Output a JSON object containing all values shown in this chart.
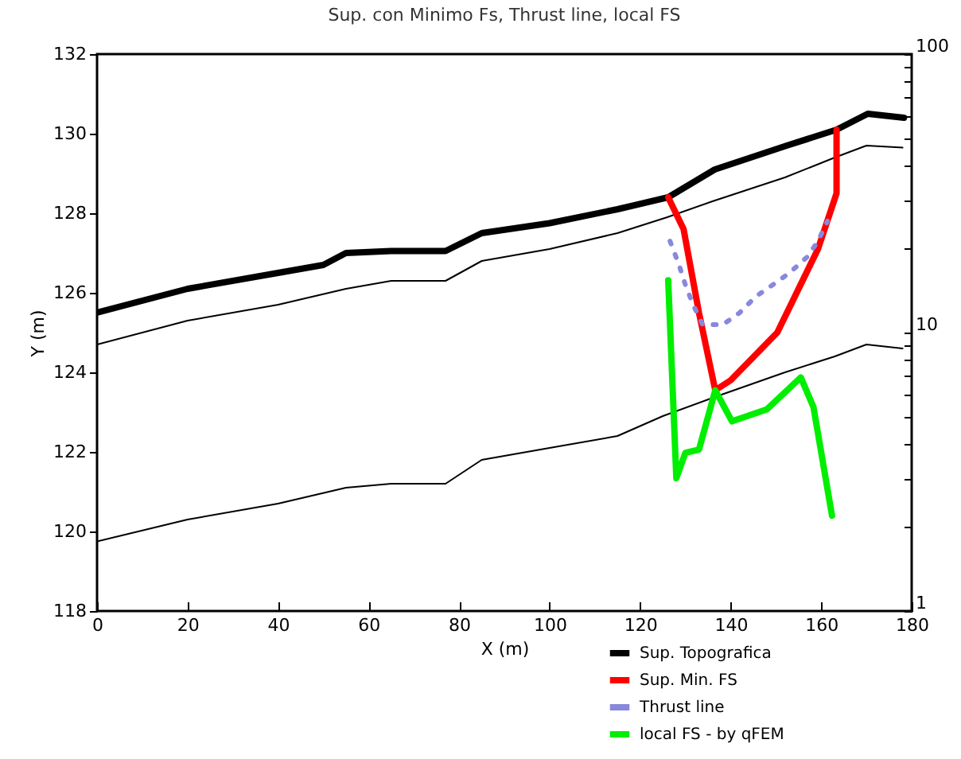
{
  "chart_data": {
    "type": "line",
    "title": "Sup. con Minimo Fs, Thrust line, local FS",
    "xlabel": "X (m)",
    "ylabel": "Y (m)",
    "xlim": [
      0,
      180
    ],
    "xticks": [
      0,
      20,
      40,
      60,
      80,
      100,
      120,
      140,
      160,
      180
    ],
    "ylim": [
      118,
      132
    ],
    "yticks": [
      118,
      120,
      122,
      124,
      126,
      128,
      130,
      132
    ],
    "y2lim": [
      1,
      100
    ],
    "y2ticks": [
      1,
      {
        "value": 2,
        "label": null
      },
      {
        "value": 3,
        "label": null
      },
      {
        "value": 4,
        "label": null
      },
      {
        "value": 5,
        "label": null
      },
      {
        "value": 6,
        "label": null
      },
      {
        "value": 7,
        "label": null
      },
      {
        "value": 8,
        "label": null
      },
      {
        "value": 9,
        "label": null
      },
      10,
      {
        "value": 20,
        "label": null
      },
      {
        "value": 30,
        "label": null
      },
      {
        "value": 40,
        "label": null
      },
      {
        "value": 50,
        "label": null
      },
      {
        "value": 60,
        "label": null
      },
      {
        "value": 70,
        "label": null
      },
      {
        "value": 80,
        "label": null
      },
      {
        "value": 90,
        "label": null
      },
      100
    ],
    "log": "y2",
    "grid": false,
    "legend": "bottom right",
    "marker": "none",
    "series": [
      {
        "name": "Sup. Topografica",
        "color": "#000000",
        "line_style": "solid",
        "x": [
          0,
          20,
          40,
          50,
          55,
          65,
          77,
          85,
          100,
          115,
          126.2,
          136.5,
          152.4,
          163.4,
          170.3,
          178.3
        ],
        "values": [
          125.5,
          126.1,
          126.5,
          126.7,
          127.0,
          127.05,
          127.05,
          127.5,
          127.75,
          128.1,
          128.4,
          129.1,
          129.7,
          130.1,
          130.5,
          130.4
        ]
      },
      {
        "color": "#000000",
        "line_style": "solid",
        "x": [
          0,
          20,
          40,
          55,
          65,
          77,
          85,
          100,
          115,
          126,
          136,
          152,
          163,
          170,
          178
        ],
        "values": [
          124.7,
          125.3,
          125.7,
          126.1,
          126.3,
          126.3,
          126.8,
          127.1,
          127.5,
          127.9,
          128.3,
          128.9,
          129.4,
          129.7,
          129.65
        ]
      },
      {
        "color": "#000000",
        "line_style": "solid",
        "x": [
          0,
          20,
          40,
          55,
          65,
          77,
          85,
          100,
          115,
          125,
          137,
          152,
          163,
          170,
          178
        ],
        "values": [
          119.75,
          120.3,
          120.7,
          121.1,
          121.2,
          121.2,
          121.8,
          122.1,
          122.4,
          122.9,
          123.4,
          124.0,
          124.4,
          124.7,
          124.6
        ]
      },
      {
        "name": "Sup. Min. FS",
        "color": "#ff0000",
        "line_style": "solid",
        "x": [
          126.2,
          129.6,
          133,
          136.6,
          140,
          150.3,
          159.3,
          163.4,
          163.4
        ],
        "values": [
          128.4,
          127.6,
          125.5,
          123.55,
          123.8,
          125.0,
          127.1,
          128.5,
          130.1
        ]
      },
      {
        "name": "Thrust line",
        "color": "#8888dd",
        "line_style": "dotted",
        "x": [
          126.6,
          128.6,
          130,
          131.7,
          133.8,
          138.3,
          142,
          145.5,
          149.3,
          153,
          156.9,
          159.3,
          161.4
        ],
        "values": [
          127.3,
          126.7,
          126.2,
          125.7,
          125.2,
          125.2,
          125.5,
          125.9,
          126.2,
          126.5,
          126.9,
          127.3,
          127.8
        ]
      },
      {
        "name": "local FS - by qFEM",
        "color": "#00ee00",
        "line_style": "solid",
        "axis": "y2",
        "x": [
          126.2,
          128,
          130,
          133,
          136.6,
          140.3,
          148,
          155.5,
          158.3,
          162.4
        ],
        "values": [
          15.4,
          3.0,
          3.7,
          3.8,
          6.2,
          4.8,
          5.3,
          6.9,
          5.4,
          2.2
        ]
      }
    ]
  }
}
